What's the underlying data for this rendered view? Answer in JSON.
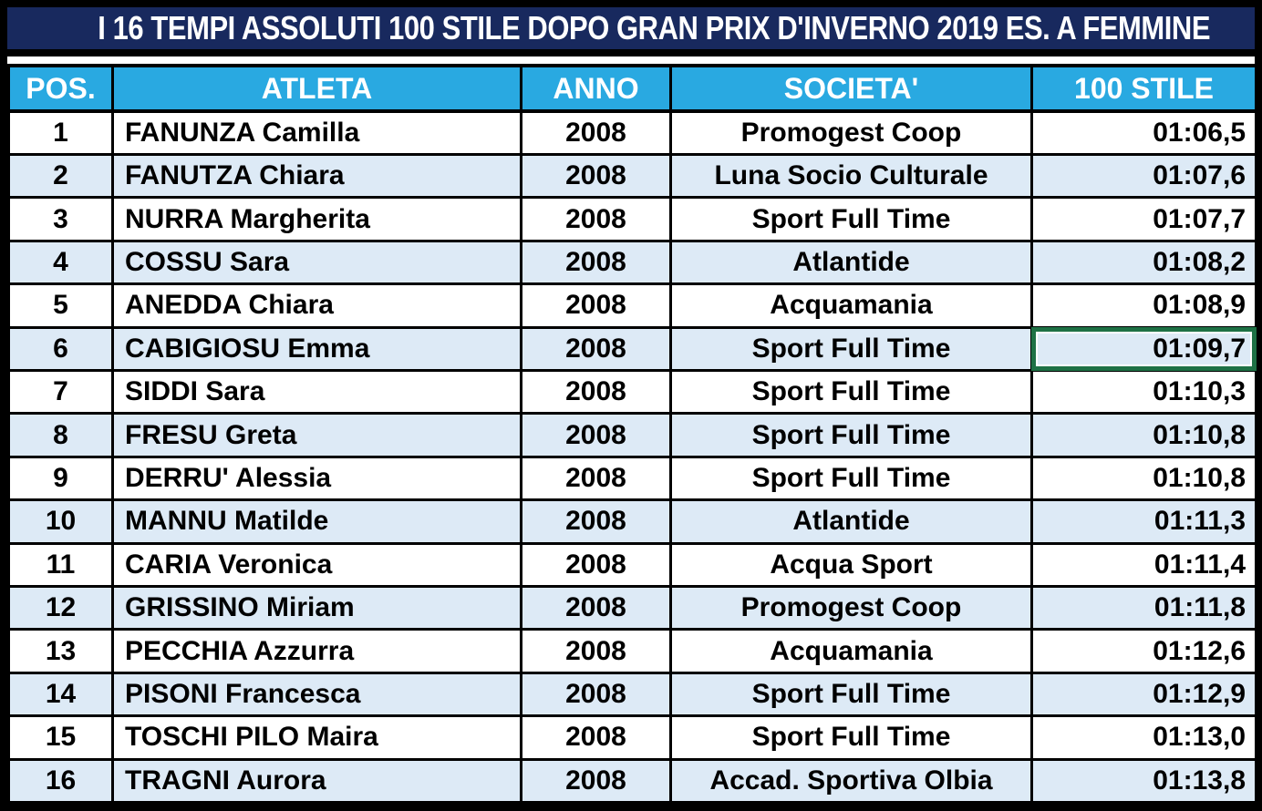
{
  "title": "I 16 TEMPI ASSOLUTI 100 STILE DOPO GRAN PRIX D'INVERNO 2019 ES. A FEMMINE",
  "table": {
    "headers": [
      "POS.",
      "ATLETA",
      "ANNO",
      "SOCIETA'",
      "100 STILE"
    ],
    "rows": [
      {
        "pos": "1",
        "atleta": "FANUNZA Camilla",
        "anno": "2008",
        "societa": "Promogest Coop",
        "tempo": "01:06,5"
      },
      {
        "pos": "2",
        "atleta": "FANUTZA Chiara",
        "anno": "2008",
        "societa": "Luna Socio Culturale",
        "tempo": "01:07,6"
      },
      {
        "pos": "3",
        "atleta": "NURRA Margherita",
        "anno": "2008",
        "societa": "Sport Full Time",
        "tempo": "01:07,7"
      },
      {
        "pos": "4",
        "atleta": "COSSU Sara",
        "anno": "2008",
        "societa": "Atlantide",
        "tempo": "01:08,2"
      },
      {
        "pos": "5",
        "atleta": "ANEDDA Chiara",
        "anno": "2008",
        "societa": "Acquamania",
        "tempo": "01:08,9"
      },
      {
        "pos": "6",
        "atleta": "CABIGIOSU Emma",
        "anno": "2008",
        "societa": "Sport Full Time",
        "tempo": "01:09,7"
      },
      {
        "pos": "7",
        "atleta": "SIDDI Sara",
        "anno": "2008",
        "societa": "Sport Full Time",
        "tempo": "01:10,3"
      },
      {
        "pos": "8",
        "atleta": "FRESU Greta",
        "anno": "2008",
        "societa": "Sport Full Time",
        "tempo": "01:10,8"
      },
      {
        "pos": "9",
        "atleta": "DERRU' Alessia",
        "anno": "2008",
        "societa": "Sport Full Time",
        "tempo": "01:10,8"
      },
      {
        "pos": "10",
        "atleta": "MANNU Matilde",
        "anno": "2008",
        "societa": "Atlantide",
        "tempo": "01:11,3"
      },
      {
        "pos": "11",
        "atleta": "CARIA Veronica",
        "anno": "2008",
        "societa": "Acqua Sport",
        "tempo": "01:11,4"
      },
      {
        "pos": "12",
        "atleta": "GRISSINO Miriam",
        "anno": "2008",
        "societa": "Promogest Coop",
        "tempo": "01:11,8"
      },
      {
        "pos": "13",
        "atleta": "PECCHIA Azzurra",
        "anno": "2008",
        "societa": "Acquamania",
        "tempo": "01:12,6"
      },
      {
        "pos": "14",
        "atleta": "PISONI Francesca",
        "anno": "2008",
        "societa": "Sport Full Time",
        "tempo": "01:12,9"
      },
      {
        "pos": "15",
        "atleta": "TOSCHI PILO Maira",
        "anno": "2008",
        "societa": "Sport Full Time",
        "tempo": "01:13,0"
      },
      {
        "pos": "16",
        "atleta": "TRAGNI Aurora",
        "anno": "2008",
        "societa": "Accad. Sportiva Olbia",
        "tempo": "01:13,8"
      }
    ]
  },
  "selection": {
    "row_pos": "6",
    "column": "100 STILE",
    "value": "01:09,7"
  },
  "colors": {
    "title_bg": "#18295E",
    "header_bg": "#29A9E1",
    "row_bg": "#FFFFFF",
    "row_alt_bg": "#DDEAF6",
    "grid_border": "#000000",
    "header_text": "#FFFFFF",
    "body_text": "#000000",
    "selection_green": "#1E7145"
  }
}
